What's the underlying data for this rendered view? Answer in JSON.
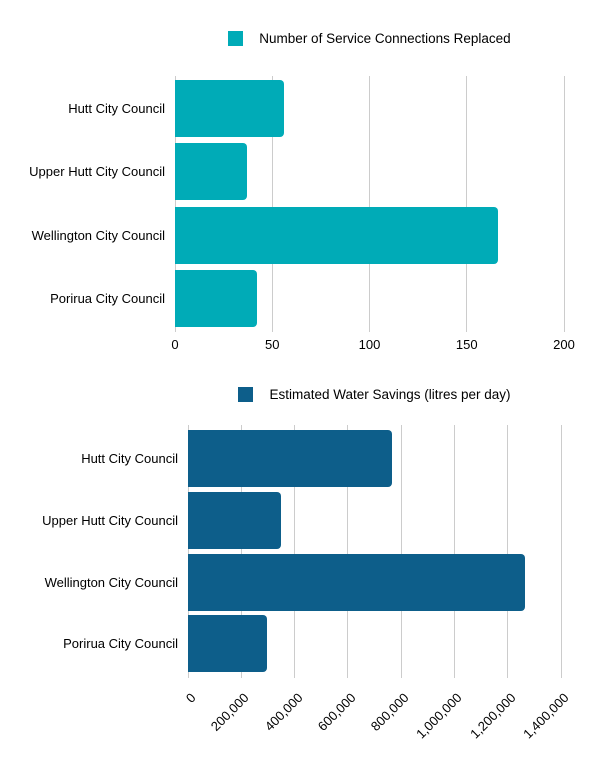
{
  "page": {
    "background": "#ffffff",
    "text_color": "#000000",
    "gridline_color": "#cccccc"
  },
  "chart_data": [
    {
      "type": "bar",
      "orientation": "horizontal",
      "title": "Number of Service Connections Replaced",
      "legend": [
        "Number of Service Connections Replaced"
      ],
      "legend_position": "top-center",
      "color": "#00ABB7",
      "categories": [
        "Hutt City Council",
        "Upper Hutt City Council",
        "Wellington City Council",
        "Porirua City Council"
      ],
      "values": [
        56,
        37,
        166,
        42
      ],
      "xlabel": "",
      "ylabel": "",
      "xlim": [
        0,
        200
      ],
      "x_ticks": [
        0,
        50,
        100,
        150,
        200
      ],
      "x_tick_labels": [
        "0",
        "50",
        "100",
        "150",
        "200"
      ],
      "tick_rotation": 0,
      "grid": true
    },
    {
      "type": "bar",
      "orientation": "horizontal",
      "title": "Estimated Water Savings (litres per day)",
      "legend": [
        "Estimated Water Savings (litres per day)"
      ],
      "legend_position": "top-center",
      "color": "#0D5E8A",
      "categories": [
        "Hutt City Council",
        "Upper Hutt City Council",
        "Wellington City Council",
        "Porirua City Council"
      ],
      "values": [
        765000,
        350000,
        1265000,
        295000
      ],
      "xlabel": "",
      "ylabel": "",
      "xlim": [
        0,
        1400000
      ],
      "x_ticks": [
        0,
        200000,
        400000,
        600000,
        800000,
        1000000,
        1200000,
        1400000
      ],
      "x_tick_labels": [
        "0",
        "200,000",
        "400,000",
        "600,000",
        "800,000",
        "1,000,000",
        "1,200,000",
        "1,400,000"
      ],
      "tick_rotation": -45,
      "grid": true
    }
  ]
}
